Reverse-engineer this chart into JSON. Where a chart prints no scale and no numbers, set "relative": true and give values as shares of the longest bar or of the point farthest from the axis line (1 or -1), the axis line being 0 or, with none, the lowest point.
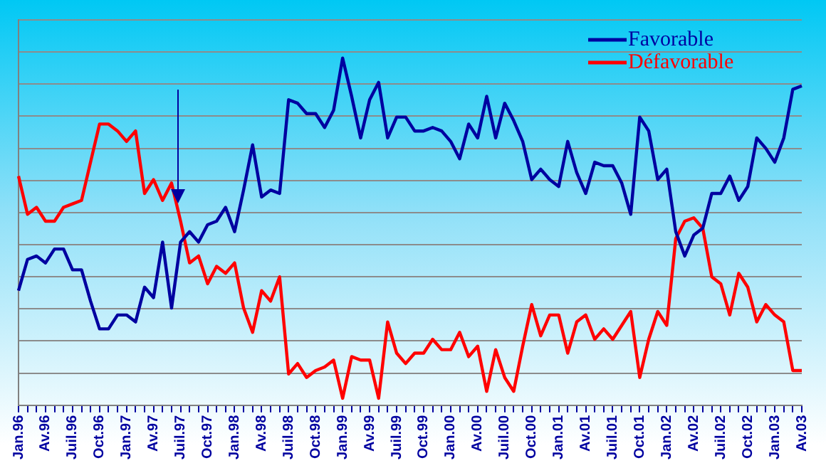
{
  "chart_data": {
    "type": "line",
    "relative": true,
    "grid": "y",
    "legend": "top right",
    "marker": "none",
    "line_style": "solid",
    "categories": [
      "Jan.96",
      null,
      null,
      "Av.96",
      null,
      null,
      "Juil.96",
      null,
      null,
      "Oct.96",
      null,
      null,
      "Jan.97",
      null,
      null,
      "Av.97",
      null,
      null,
      "Juil.97",
      null,
      null,
      "Oct.97",
      null,
      null,
      "Jan.98",
      null,
      null,
      "Av.98",
      null,
      null,
      "Juil.98",
      null,
      null,
      "Oct.98",
      null,
      null,
      "Jan.99",
      null,
      null,
      "Av.99",
      null,
      null,
      "Juil.99",
      null,
      null,
      "Oct.99",
      null,
      null,
      "Jan.00",
      null,
      null,
      "Av.00",
      null,
      null,
      "Juil.00",
      null,
      null,
      "Oct.00",
      null,
      null,
      "Jan.01",
      null,
      null,
      "Av.01",
      null,
      null,
      "Juil.01",
      null,
      null,
      "Oct.01",
      null,
      null,
      "Jan.02",
      null,
      null,
      "Av.02",
      null,
      null,
      "Juil.02",
      null,
      null,
      "Oct.02",
      null,
      null,
      "Jan.03",
      null,
      null,
      "Av.03"
    ],
    "series": [
      {
        "name": "Favorable",
        "color": "#0000a0",
        "values": [
          0.33,
          0.42,
          0.43,
          0.41,
          0.45,
          0.45,
          0.39,
          0.39,
          0.3,
          0.22,
          0.22,
          0.26,
          0.26,
          0.24,
          0.34,
          0.31,
          0.47,
          0.28,
          0.47,
          0.5,
          0.47,
          0.52,
          0.53,
          0.57,
          0.5,
          0.62,
          0.75,
          0.6,
          0.62,
          0.61,
          0.88,
          0.87,
          0.84,
          0.84,
          0.8,
          0.85,
          1,
          0.89,
          0.77,
          0.88,
          0.93,
          0.77,
          0.83,
          0.83,
          0.79,
          0.79,
          0.8,
          0.79,
          0.76,
          0.71,
          0.81,
          0.77,
          0.89,
          0.77,
          0.87,
          0.82,
          0.76,
          0.65,
          0.68,
          0.65,
          0.63,
          0.76,
          0.67,
          0.61,
          0.7,
          0.69,
          0.69,
          0.64,
          0.55,
          0.83,
          0.79,
          0.65,
          0.68,
          0.5,
          0.43,
          0.49,
          0.51,
          0.61,
          0.61,
          0.66,
          0.59,
          0.63,
          0.77,
          0.74,
          0.7,
          0.77,
          0.91,
          0.92
        ]
      },
      {
        "name": "Défavorable",
        "color": "#ff0000",
        "values": [
          0.66,
          0.55,
          0.57,
          0.53,
          0.53,
          0.57,
          0.58,
          0.59,
          0.7,
          0.81,
          0.81,
          0.79,
          0.76,
          0.79,
          0.61,
          0.65,
          0.59,
          0.64,
          0.53,
          0.41,
          0.43,
          0.35,
          0.4,
          0.38,
          0.41,
          0.28,
          0.21,
          0.33,
          0.3,
          0.37,
          0.09,
          0.12,
          0.08,
          0.1,
          0.11,
          0.13,
          0.02,
          0.14,
          0.13,
          0.13,
          0.02,
          0.24,
          0.15,
          0.12,
          0.15,
          0.15,
          0.19,
          0.16,
          0.16,
          0.21,
          0.14,
          0.17,
          0.04,
          0.16,
          0.08,
          0.04,
          0.17,
          0.29,
          0.2,
          0.26,
          0.26,
          0.15,
          0.24,
          0.26,
          0.19,
          0.22,
          0.19,
          0.23,
          0.27,
          0.08,
          0.19,
          0.27,
          0.23,
          0.48,
          0.53,
          0.54,
          0.51,
          0.37,
          0.35,
          0.26,
          0.38,
          0.34,
          0.24,
          0.29,
          0.26,
          0.24,
          0.1,
          0.1
        ]
      }
    ]
  }
}
